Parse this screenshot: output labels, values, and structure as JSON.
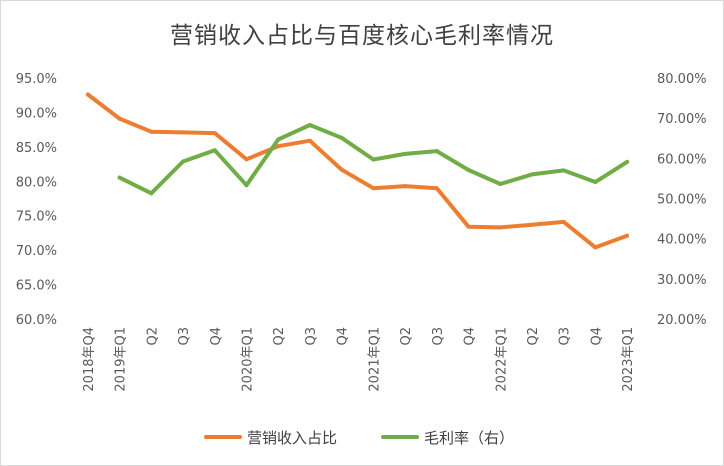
{
  "chart_data": {
    "type": "line",
    "title": "营销收入占比与百度核心毛利率情况",
    "categories": [
      "2018年Q4",
      "2019年Q1",
      "Q2",
      "Q3",
      "Q4",
      "2020年Q1",
      "Q2",
      "Q3",
      "Q4",
      "2021年Q1",
      "Q2",
      "Q3",
      "Q4",
      "2022年Q1",
      "Q2",
      "Q3",
      "Q4",
      "2023年Q1"
    ],
    "left_axis": {
      "ylim": [
        0.6,
        0.95
      ],
      "ticks": [
        0.6,
        0.65,
        0.7,
        0.75,
        0.8,
        0.85,
        0.9,
        0.95
      ],
      "tick_labels": [
        "60.0%",
        "65.0%",
        "70.0%",
        "75.0%",
        "80.0%",
        "85.0%",
        "90.0%",
        "95.0%"
      ]
    },
    "right_axis": {
      "ylim": [
        0.2,
        0.8
      ],
      "ticks": [
        0.2,
        0.3,
        0.4,
        0.5,
        0.6,
        0.7,
        0.8
      ],
      "tick_labels": [
        "20.00%",
        "30.00%",
        "40.00%",
        "50.00%",
        "60.00%",
        "70.00%",
        "80.00%"
      ]
    },
    "grid": false,
    "legend_position": "bottom",
    "series": [
      {
        "name": "营销收入占比",
        "axis": "left",
        "color": "#ED7D31",
        "values": [
          0.926,
          0.891,
          0.872,
          0.871,
          0.87,
          0.832,
          0.851,
          0.859,
          0.817,
          0.79,
          0.793,
          0.79,
          0.734,
          0.733,
          0.737,
          0.741,
          0.704,
          0.721
        ]
      },
      {
        "name": "毛利率（右）",
        "axis": "right",
        "color": "#70AD47",
        "values": [
          null,
          0.552,
          0.513,
          0.592,
          0.62,
          0.533,
          0.647,
          0.683,
          0.651,
          0.597,
          0.611,
          0.618,
          0.571,
          0.536,
          0.56,
          0.57,
          0.541,
          0.591
        ]
      }
    ]
  }
}
